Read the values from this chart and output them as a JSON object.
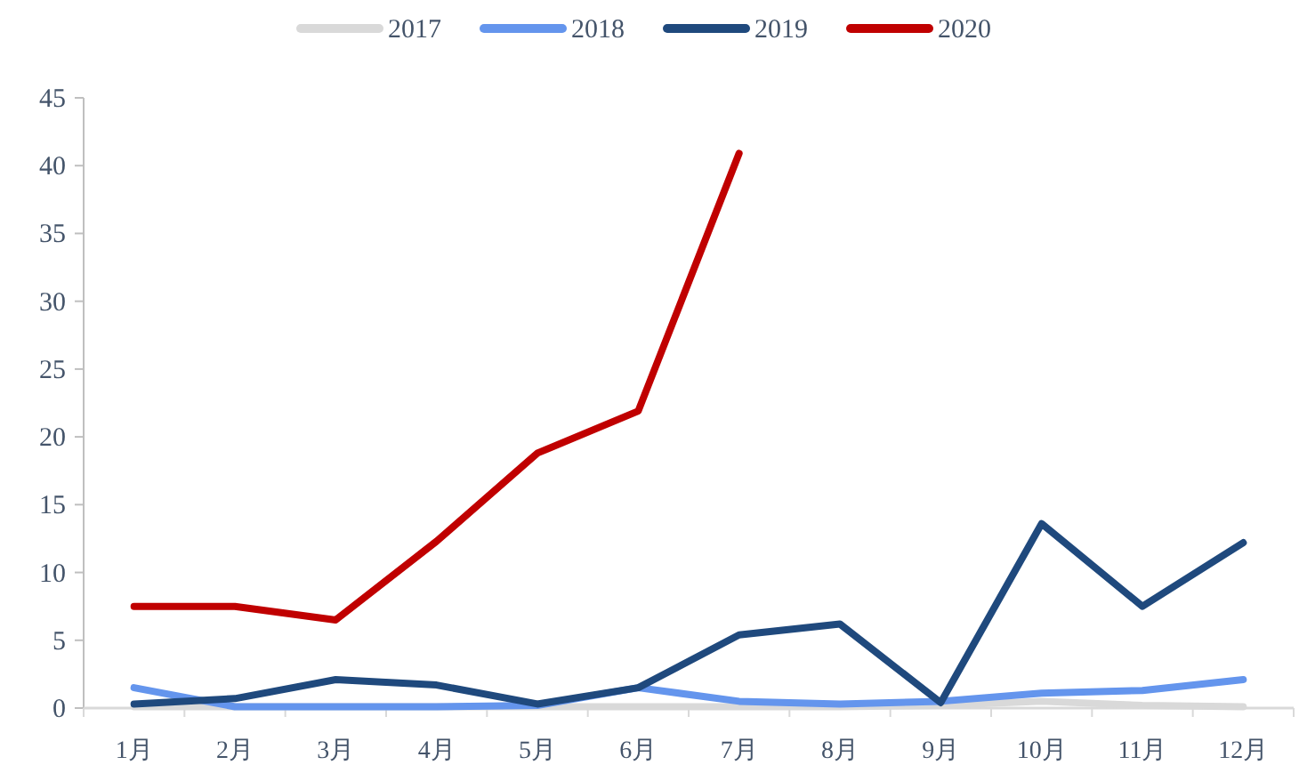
{
  "chart_data": {
    "type": "line",
    "categories": [
      "1月",
      "2月",
      "3月",
      "4月",
      "5月",
      "6月",
      "7月",
      "8月",
      "9月",
      "10月",
      "11月",
      "12月"
    ],
    "series": [
      {
        "name": "2017",
        "color": "#d9d9d9",
        "values": [
          0.1,
          0.1,
          0.1,
          0.1,
          0.1,
          0.1,
          0.1,
          0.1,
          0.2,
          0.5,
          0.2,
          0.1
        ]
      },
      {
        "name": "2018",
        "color": "#6495ed",
        "values": [
          1.5,
          0.1,
          0.1,
          0.1,
          0.2,
          1.5,
          0.5,
          0.3,
          0.5,
          1.1,
          1.3,
          2.1
        ]
      },
      {
        "name": "2019",
        "color": "#1f497d",
        "values": [
          0.3,
          0.7,
          2.1,
          1.7,
          0.3,
          1.5,
          5.4,
          6.2,
          0.4,
          13.6,
          7.5,
          12.2
        ]
      },
      {
        "name": "2020",
        "color": "#c00000",
        "values": [
          7.5,
          7.5,
          6.5,
          12.3,
          18.8,
          21.9,
          40.9,
          null,
          null,
          null,
          null,
          null
        ]
      }
    ],
    "ylim": [
      0,
      45
    ],
    "yticks": [
      0,
      5,
      10,
      15,
      20,
      25,
      30,
      35,
      40,
      45
    ],
    "grid": false,
    "legend": "top",
    "marker": "none",
    "line_style": "solid"
  }
}
